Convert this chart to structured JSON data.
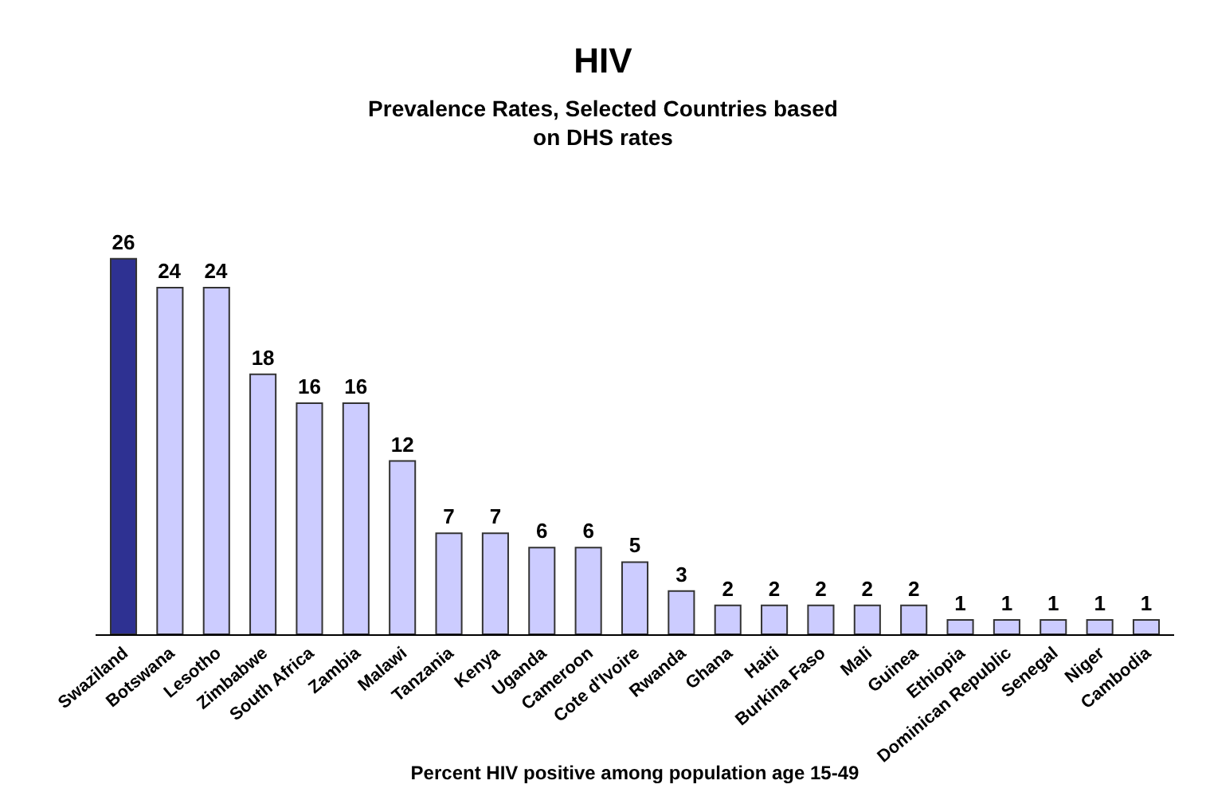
{
  "chart_data": {
    "type": "bar",
    "title": "HIV",
    "subtitle": "Prevalence Rates, Selected Countries based\non DHS rates",
    "xlabel": "Percent HIV positive among population age 15-49",
    "categories": [
      "Swaziland",
      "Botswana",
      "Lesotho",
      "Zimbabwe",
      "South Africa",
      "Zambia",
      "Malawi",
      "Tanzania",
      "Kenya",
      "Uganda",
      "Cameroon",
      "Cote d'Ivoire",
      "Rwanda",
      "Ghana",
      "Haiti",
      "Burkina Faso",
      "Mali",
      "Guinea",
      "Ethiopia",
      "Dominican Republic",
      "Senegal",
      "Niger",
      "Cambodia"
    ],
    "values": [
      26,
      24,
      24,
      18,
      16,
      16,
      12,
      7,
      7,
      6,
      6,
      5,
      3,
      2,
      2,
      2,
      2,
      2,
      1,
      1,
      1,
      1,
      1
    ],
    "colors": [
      "#2e3192",
      "#ccccff",
      "#ccccff",
      "#ccccff",
      "#ccccff",
      "#ccccff",
      "#ccccff",
      "#ccccff",
      "#ccccff",
      "#ccccff",
      "#ccccff",
      "#ccccff",
      "#ccccff",
      "#ccccff",
      "#ccccff",
      "#ccccff",
      "#ccccff",
      "#ccccff",
      "#ccccff",
      "#ccccff",
      "#ccccff",
      "#ccccff",
      "#ccccff"
    ],
    "data_labels": true
  }
}
